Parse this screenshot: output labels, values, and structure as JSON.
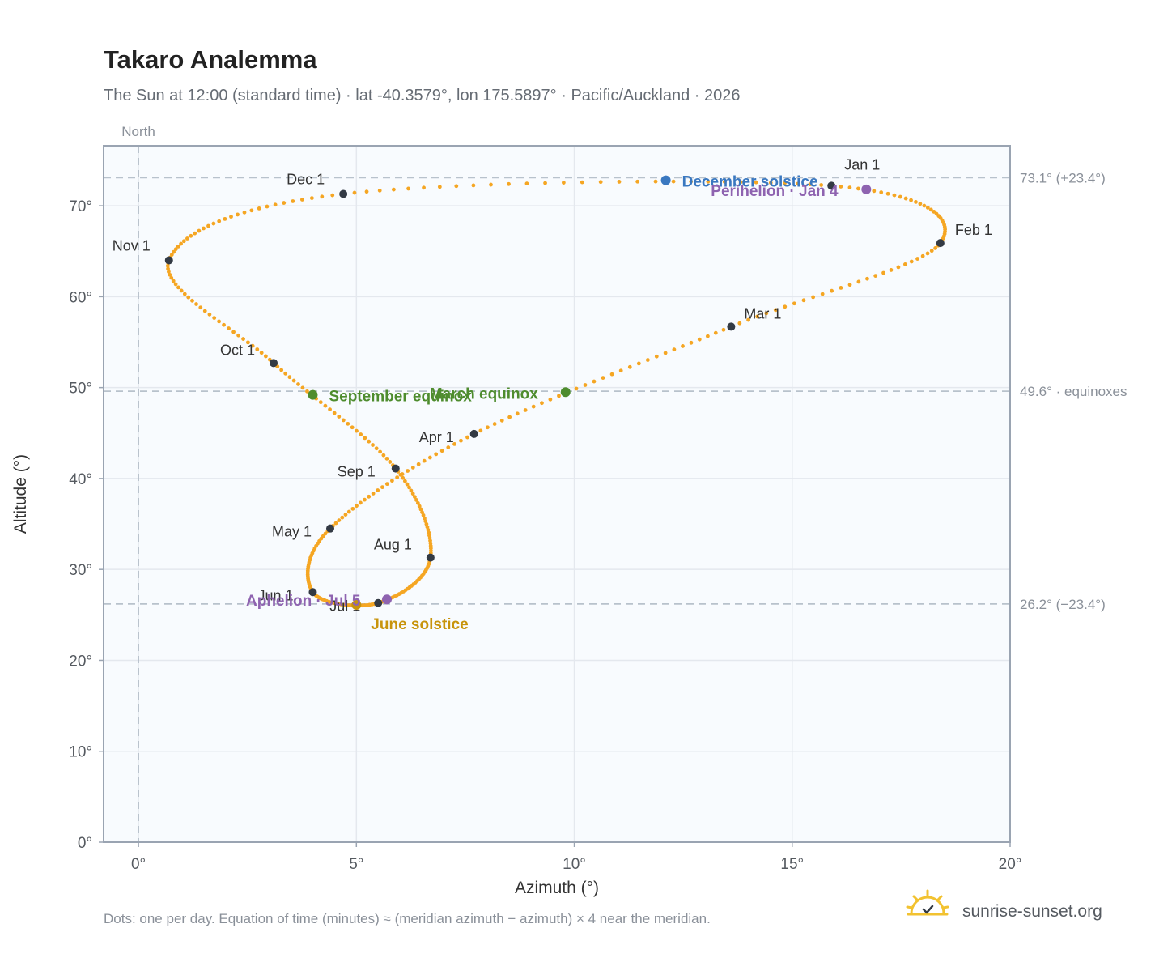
{
  "header": {
    "title": "Takaro Analemma",
    "subtitle": "The Sun at 12:00 (standard time) · lat -40.3579°, lon 175.5897° · Pacific/Auckland · 2026"
  },
  "footer": {
    "note": "Dots: one per day. Equation of time (minutes) ≈ (meridian azimuth − azimuth) × 4 near the meridian.",
    "brand": "sunrise-sunset.org"
  },
  "colors": {
    "path": "#f5a623",
    "month_marker": "#333a44",
    "equinox": "#4e8c2e",
    "june_solstice": "#c8940c",
    "december_solstice": "#3a78c0",
    "apsis": "#8e63b0",
    "plot_bg": "#f8fbfe",
    "grid": "#e4e8ee",
    "frame": "#9aa4b2",
    "refline": "#b8c2cc"
  },
  "icons": {
    "brand": "sun-logo-icon"
  },
  "chart_data": {
    "type": "scatter",
    "title": "Takaro Analemma",
    "subtitle": "The Sun at 12:00 (standard time) · lat -40.3579°, lon 175.5897° · Pacific/Auckland · 2026",
    "xlabel": "Azimuth (°)",
    "ylabel": "Altitude (°)",
    "xlim": [
      -0.8,
      20
    ],
    "ylim": [
      0,
      76.6
    ],
    "xticks": [
      0,
      5,
      10,
      15,
      20
    ],
    "xtick_labels": [
      "0°",
      "5°",
      "10°",
      "15°",
      "20°"
    ],
    "yticks": [
      0,
      10,
      20,
      30,
      40,
      50,
      60,
      70
    ],
    "ytick_labels": [
      "0°",
      "10°",
      "20°",
      "30°",
      "40°",
      "50°",
      "60°",
      "70°"
    ],
    "grid": true,
    "meridian": {
      "azimuth": 0,
      "label": "North"
    },
    "reference_lines": [
      {
        "altitude": 73.1,
        "label": "73.1° (+23.4°)"
      },
      {
        "altitude": 49.6,
        "label": "49.6° · equinoxes"
      },
      {
        "altitude": 26.2,
        "label": "26.2° (−23.4°)"
      }
    ],
    "path_note": "one dot per day",
    "month_markers": [
      {
        "label": "Jan 1",
        "az": 15.9,
        "alt": 72.2
      },
      {
        "label": "Feb 1",
        "az": 18.4,
        "alt": 65.9
      },
      {
        "label": "Mar 1",
        "az": 13.6,
        "alt": 56.7
      },
      {
        "label": "Apr 1",
        "az": 7.7,
        "alt": 44.9
      },
      {
        "label": "May 1",
        "az": 4.4,
        "alt": 34.5
      },
      {
        "label": "Jun 1",
        "az": 4.0,
        "alt": 27.5
      },
      {
        "label": "Jul 1",
        "az": 5.5,
        "alt": 26.3
      },
      {
        "label": "Aug 1",
        "az": 6.7,
        "alt": 31.3
      },
      {
        "label": "Sep 1",
        "az": 5.9,
        "alt": 41.1
      },
      {
        "label": "Oct 1",
        "az": 3.1,
        "alt": 52.7
      },
      {
        "label": "Nov 1",
        "az": 0.7,
        "alt": 64.0
      },
      {
        "label": "Dec 1",
        "az": 4.7,
        "alt": 71.3
      }
    ],
    "events": [
      {
        "label": "March equinox",
        "az": 9.8,
        "alt": 49.5,
        "kind": "equinox"
      },
      {
        "label": "September equinox",
        "az": 4.0,
        "alt": 49.2,
        "kind": "equinox"
      },
      {
        "label": "June solstice",
        "az": 5.0,
        "alt": 26.1,
        "kind": "june_solstice"
      },
      {
        "label": "December solstice",
        "az": 12.1,
        "alt": 72.8,
        "kind": "december_solstice"
      },
      {
        "label": "Perihelion · Jan 4",
        "az": 16.7,
        "alt": 71.8,
        "kind": "apsis"
      },
      {
        "label": "Aphelion · Jul 5",
        "az": 5.7,
        "alt": 26.7,
        "kind": "apsis"
      }
    ]
  }
}
